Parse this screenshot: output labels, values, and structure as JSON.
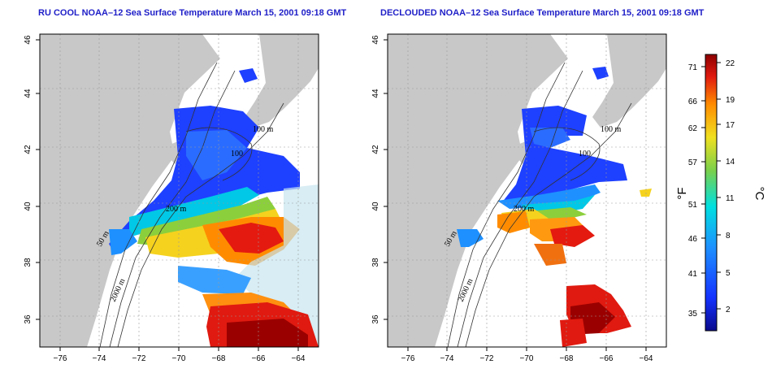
{
  "left_map": {
    "title": "RU COOL NOAA–12 Sea Surface Temperature March 15, 2001 09:18 GMT",
    "contour_labels": [
      "100 m",
      "100",
      "200 m",
      "50 m",
      "2000 m"
    ]
  },
  "right_map": {
    "title": "DECLOUDED NOAA–12 Sea Surface Temperature March 15, 2001 09:18 GMT",
    "contour_labels": [
      "100 m",
      "100",
      "200 m",
      "50 m",
      "2000 m"
    ]
  },
  "axes": {
    "lat_ticks": [
      "46",
      "44",
      "42",
      "40",
      "38",
      "36"
    ],
    "lon_ticks": [
      "−76",
      "−74",
      "−72",
      "−70",
      "−68",
      "−66",
      "−64"
    ]
  },
  "colorbar": {
    "fahrenheit_ticks": [
      "71",
      "66",
      "62",
      "57",
      "51",
      "46",
      "41",
      "35"
    ],
    "celsius_ticks": [
      "22",
      "19",
      "17",
      "14",
      "11",
      "8",
      "5",
      "2"
    ],
    "fahrenheit_unit": "°F",
    "celsius_unit": "°C"
  },
  "colors": {
    "land": "#c8c8c8",
    "title": "#1e1ec8"
  }
}
